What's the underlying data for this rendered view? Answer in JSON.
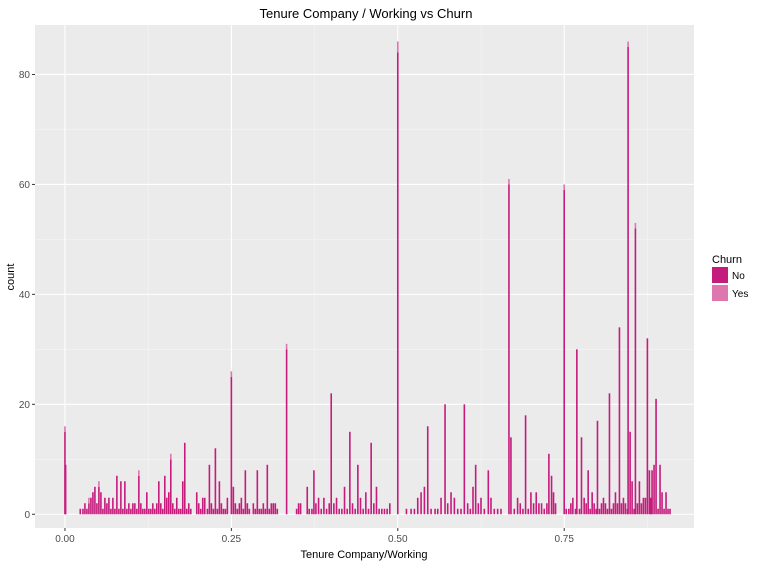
{
  "chart_data": {
    "type": "bar",
    "title": "Tenure Company / Working vs Churn",
    "xlabel": "Tenure Company/Working",
    "ylabel": "count",
    "xlim": [
      -0.045,
      0.945
    ],
    "ylim": [
      -2.5,
      89
    ],
    "x_ticks": [
      0.0,
      0.25,
      0.5,
      0.75
    ],
    "x_tick_labels": [
      "0.00",
      "0.25",
      "0.50",
      "0.75"
    ],
    "y_ticks": [
      0,
      20,
      40,
      60,
      80
    ],
    "y_tick_labels": [
      "0",
      "20",
      "40",
      "60",
      "80"
    ],
    "grid": true,
    "legend": {
      "title": "Churn",
      "position": "right",
      "entries": [
        {
          "label": "No",
          "color": "#c51b7d"
        },
        {
          "label": "Yes",
          "color": "#de77ae"
        }
      ]
    },
    "series": [
      {
        "name": "No",
        "color": "#c51b7d",
        "points": [
          [
            0.0,
            15
          ],
          [
            0.001,
            9
          ],
          [
            0.023,
            1
          ],
          [
            0.027,
            1
          ],
          [
            0.03,
            2
          ],
          [
            0.033,
            1
          ],
          [
            0.036,
            2
          ],
          [
            0.039,
            3
          ],
          [
            0.042,
            4
          ],
          [
            0.045,
            5
          ],
          [
            0.048,
            2
          ],
          [
            0.051,
            5
          ],
          [
            0.054,
            4
          ],
          [
            0.057,
            1
          ],
          [
            0.06,
            3
          ],
          [
            0.063,
            2
          ],
          [
            0.066,
            3
          ],
          [
            0.069,
            1
          ],
          [
            0.072,
            3
          ],
          [
            0.075,
            1
          ],
          [
            0.078,
            7
          ],
          [
            0.081,
            1
          ],
          [
            0.084,
            6
          ],
          [
            0.087,
            1
          ],
          [
            0.09,
            6
          ],
          [
            0.093,
            1
          ],
          [
            0.096,
            2
          ],
          [
            0.099,
            1
          ],
          [
            0.102,
            2
          ],
          [
            0.105,
            2
          ],
          [
            0.108,
            1
          ],
          [
            0.111,
            7
          ],
          [
            0.114,
            2
          ],
          [
            0.117,
            1
          ],
          [
            0.12,
            1
          ],
          [
            0.123,
            4
          ],
          [
            0.126,
            1
          ],
          [
            0.129,
            1
          ],
          [
            0.132,
            2
          ],
          [
            0.135,
            1
          ],
          [
            0.138,
            2
          ],
          [
            0.141,
            6
          ],
          [
            0.144,
            2
          ],
          [
            0.147,
            1
          ],
          [
            0.15,
            7
          ],
          [
            0.153,
            3
          ],
          [
            0.156,
            4
          ],
          [
            0.159,
            10
          ],
          [
            0.162,
            2
          ],
          [
            0.165,
            1
          ],
          [
            0.168,
            3
          ],
          [
            0.171,
            1
          ],
          [
            0.174,
            1
          ],
          [
            0.177,
            6
          ],
          [
            0.18,
            13
          ],
          [
            0.183,
            1
          ],
          [
            0.186,
            2
          ],
          [
            0.189,
            1
          ],
          [
            0.198,
            4
          ],
          [
            0.201,
            2
          ],
          [
            0.204,
            1
          ],
          [
            0.207,
            3
          ],
          [
            0.21,
            3
          ],
          [
            0.214,
            1
          ],
          [
            0.217,
            9
          ],
          [
            0.22,
            2
          ],
          [
            0.223,
            1
          ],
          [
            0.226,
            12
          ],
          [
            0.229,
            1
          ],
          [
            0.232,
            6
          ],
          [
            0.235,
            2
          ],
          [
            0.238,
            1
          ],
          [
            0.241,
            1
          ],
          [
            0.244,
            3
          ],
          [
            0.25,
            25
          ],
          [
            0.253,
            5
          ],
          [
            0.256,
            2
          ],
          [
            0.259,
            1
          ],
          [
            0.262,
            2
          ],
          [
            0.265,
            3
          ],
          [
            0.268,
            1
          ],
          [
            0.271,
            8
          ],
          [
            0.274,
            2
          ],
          [
            0.277,
            1
          ],
          [
            0.283,
            2
          ],
          [
            0.286,
            1
          ],
          [
            0.289,
            8
          ],
          [
            0.292,
            1
          ],
          [
            0.295,
            1
          ],
          [
            0.298,
            2
          ],
          [
            0.301,
            1
          ],
          [
            0.304,
            9
          ],
          [
            0.307,
            1
          ],
          [
            0.31,
            2
          ],
          [
            0.313,
            2
          ],
          [
            0.316,
            2
          ],
          [
            0.319,
            1
          ],
          [
            0.333,
            30
          ],
          [
            0.348,
            1
          ],
          [
            0.351,
            2
          ],
          [
            0.354,
            2
          ],
          [
            0.364,
            5
          ],
          [
            0.367,
            1
          ],
          [
            0.371,
            1
          ],
          [
            0.374,
            8
          ],
          [
            0.377,
            2
          ],
          [
            0.381,
            3
          ],
          [
            0.385,
            1
          ],
          [
            0.389,
            3
          ],
          [
            0.393,
            1
          ],
          [
            0.397,
            2
          ],
          [
            0.4,
            22
          ],
          [
            0.404,
            2
          ],
          [
            0.408,
            3
          ],
          [
            0.412,
            1
          ],
          [
            0.416,
            1
          ],
          [
            0.42,
            5
          ],
          [
            0.424,
            1
          ],
          [
            0.428,
            15
          ],
          [
            0.432,
            2
          ],
          [
            0.436,
            1
          ],
          [
            0.44,
            9
          ],
          [
            0.444,
            3
          ],
          [
            0.448,
            1
          ],
          [
            0.452,
            4
          ],
          [
            0.456,
            1
          ],
          [
            0.46,
            13
          ],
          [
            0.464,
            2
          ],
          [
            0.468,
            5
          ],
          [
            0.472,
            1
          ],
          [
            0.476,
            1
          ],
          [
            0.48,
            1
          ],
          [
            0.484,
            1
          ],
          [
            0.488,
            2
          ],
          [
            0.5,
            84
          ],
          [
            0.513,
            1
          ],
          [
            0.52,
            1
          ],
          [
            0.525,
            1
          ],
          [
            0.53,
            3
          ],
          [
            0.535,
            4
          ],
          [
            0.54,
            5
          ],
          [
            0.545,
            16
          ],
          [
            0.55,
            1
          ],
          [
            0.556,
            1
          ],
          [
            0.56,
            1
          ],
          [
            0.565,
            3
          ],
          [
            0.571,
            20
          ],
          [
            0.575,
            2
          ],
          [
            0.58,
            4
          ],
          [
            0.585,
            3
          ],
          [
            0.59,
            1
          ],
          [
            0.595,
            1
          ],
          [
            0.6,
            20
          ],
          [
            0.605,
            2
          ],
          [
            0.609,
            1
          ],
          [
            0.613,
            5
          ],
          [
            0.617,
            9
          ],
          [
            0.621,
            2
          ],
          [
            0.625,
            3
          ],
          [
            0.63,
            1
          ],
          [
            0.636,
            8
          ],
          [
            0.64,
            3
          ],
          [
            0.645,
            1
          ],
          [
            0.65,
            1
          ],
          [
            0.655,
            1
          ],
          [
            0.667,
            60
          ],
          [
            0.67,
            14
          ],
          [
            0.675,
            1
          ],
          [
            0.68,
            3
          ],
          [
            0.684,
            2
          ],
          [
            0.688,
            1
          ],
          [
            0.692,
            18
          ],
          [
            0.696,
            1
          ],
          [
            0.7,
            4
          ],
          [
            0.704,
            2
          ],
          [
            0.708,
            4
          ],
          [
            0.712,
            2
          ],
          [
            0.716,
            2
          ],
          [
            0.72,
            1
          ],
          [
            0.724,
            2
          ],
          [
            0.727,
            11
          ],
          [
            0.731,
            7
          ],
          [
            0.734,
            4
          ],
          [
            0.737,
            2
          ],
          [
            0.75,
            59
          ],
          [
            0.753,
            1
          ],
          [
            0.757,
            1
          ],
          [
            0.76,
            2
          ],
          [
            0.763,
            3
          ],
          [
            0.767,
            1
          ],
          [
            0.769,
            30
          ],
          [
            0.773,
            1
          ],
          [
            0.776,
            14
          ],
          [
            0.78,
            3
          ],
          [
            0.783,
            2
          ],
          [
            0.786,
            8
          ],
          [
            0.789,
            1
          ],
          [
            0.792,
            4
          ],
          [
            0.795,
            2
          ],
          [
            0.798,
            1
          ],
          [
            0.8,
            17
          ],
          [
            0.803,
            1
          ],
          [
            0.806,
            2
          ],
          [
            0.809,
            3
          ],
          [
            0.812,
            2
          ],
          [
            0.815,
            1
          ],
          [
            0.818,
            22
          ],
          [
            0.821,
            1
          ],
          [
            0.824,
            2
          ],
          [
            0.827,
            4
          ],
          [
            0.83,
            2
          ],
          [
            0.833,
            34
          ],
          [
            0.836,
            2
          ],
          [
            0.839,
            3
          ],
          [
            0.842,
            2
          ],
          [
            0.845,
            1
          ],
          [
            0.846,
            85
          ],
          [
            0.849,
            15
          ],
          [
            0.852,
            6
          ],
          [
            0.855,
            1
          ],
          [
            0.857,
            52
          ],
          [
            0.86,
            2
          ],
          [
            0.863,
            6
          ],
          [
            0.866,
            2
          ],
          [
            0.869,
            3
          ],
          [
            0.872,
            3
          ],
          [
            0.875,
            32
          ],
          [
            0.878,
            8
          ],
          [
            0.88,
            3
          ],
          [
            0.882,
            8
          ],
          [
            0.885,
            9
          ],
          [
            0.888,
            21
          ],
          [
            0.891,
            1
          ],
          [
            0.894,
            9
          ],
          [
            0.897,
            4
          ],
          [
            0.9,
            1
          ],
          [
            0.903,
            4
          ],
          [
            0.906,
            1
          ],
          [
            0.909,
            1
          ]
        ]
      },
      {
        "name": "Yes",
        "color": "#de77ae",
        "points": [
          [
            0.0,
            1
          ],
          [
            0.036,
            1
          ],
          [
            0.051,
            1
          ],
          [
            0.111,
            1
          ],
          [
            0.159,
            1
          ],
          [
            0.25,
            1
          ],
          [
            0.333,
            1
          ],
          [
            0.5,
            2
          ],
          [
            0.667,
            1
          ],
          [
            0.75,
            1
          ],
          [
            0.846,
            1
          ],
          [
            0.857,
            1
          ]
        ]
      }
    ]
  }
}
